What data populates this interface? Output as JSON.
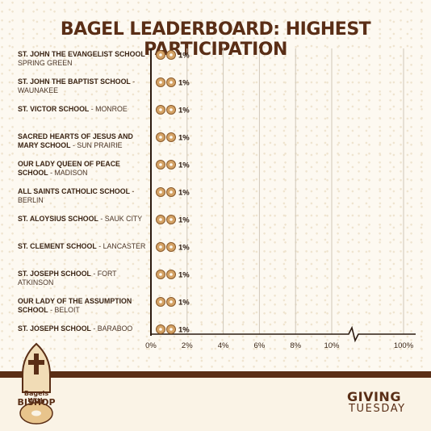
{
  "title": "BAGEL LEADERBOARD: HIGHEST PARTICIPATION",
  "chart_data": {
    "type": "bar",
    "title": "BAGEL LEADERBOARD: HIGHEST PARTICIPATION",
    "orientation": "horizontal",
    "categories": [
      {
        "name": "ST. JOHN THE EVANGELIST SCHOOL",
        "town": "SPRING GREEN"
      },
      {
        "name": "ST. JOHN THE BAPTIST SCHOOL",
        "town": "WAUNAKEE"
      },
      {
        "name": "ST. VICTOR SCHOOL",
        "town": "MONROE"
      },
      {
        "name": "SACRED HEARTS OF JESUS AND MARY SCHOOL",
        "town": "SUN PRAIRIE"
      },
      {
        "name": "OUR LADY QUEEN OF PEACE SCHOOL",
        "town": "MADISON"
      },
      {
        "name": "ALL SAINTS CATHOLIC SCHOOL",
        "town": "BERLIN"
      },
      {
        "name": "ST. ALOYSIUS SCHOOL",
        "town": "SAUK CITY"
      },
      {
        "name": "ST. CLEMENT SCHOOL",
        "town": "LANCASTER"
      },
      {
        "name": "ST. JOSEPH SCHOOL",
        "town": "FORT ATKINSON"
      },
      {
        "name": "OUR LADY OF THE ASSUMPTION SCHOOL",
        "town": "BELOIT"
      },
      {
        "name": "ST. JOSEPH SCHOOL",
        "town": "BARABOO"
      }
    ],
    "values": [
      1,
      1,
      1,
      1,
      1,
      1,
      1,
      1,
      1,
      1,
      1
    ],
    "value_labels": [
      "1%",
      "1%",
      "1%",
      "1%",
      "1%",
      "1%",
      "1%",
      "1%",
      "1%",
      "1%",
      "1%"
    ],
    "x_ticks": [
      "0%",
      "2%",
      "4%",
      "6%",
      "8%",
      "10%",
      "100%"
    ],
    "x_tick_values": [
      0,
      2,
      4,
      6,
      8,
      10,
      100
    ],
    "xlim": [
      0,
      100
    ],
    "axis_break": "between 10% and 100%",
    "grid": true,
    "marker": "bagel-icon",
    "colors": {
      "text": "#5a2e16",
      "grid": "#cfc6b8",
      "bagel": "#d4a265"
    }
  },
  "footer": {
    "logo_line1": "Bagels With",
    "logo_line2": "BISHOP",
    "giving": "GIVING",
    "tuesday": "TUESDAY"
  }
}
